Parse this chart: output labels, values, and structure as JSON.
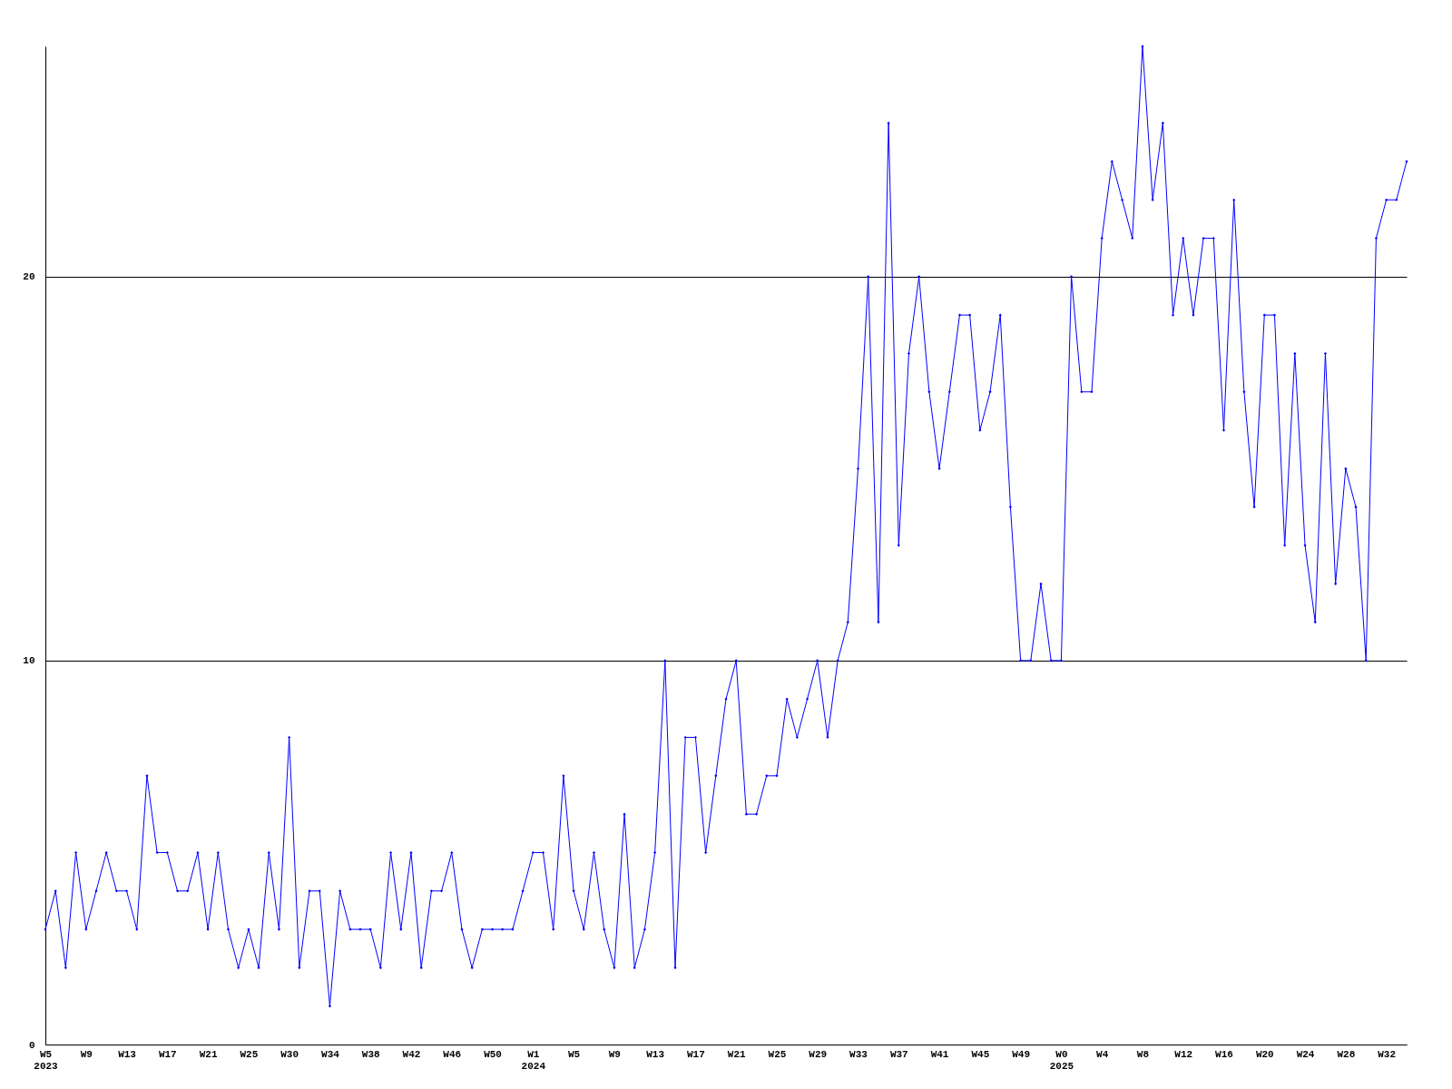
{
  "chart_data": {
    "type": "line",
    "categories": [
      "W5\n2023",
      null,
      null,
      null,
      "W9",
      null,
      null,
      null,
      "W13",
      null,
      null,
      null,
      "W17",
      null,
      null,
      null,
      "W21",
      null,
      null,
      null,
      "W25",
      null,
      null,
      null,
      "W30",
      null,
      null,
      null,
      "W34",
      null,
      null,
      null,
      "W38",
      null,
      null,
      null,
      "W42",
      null,
      null,
      null,
      "W46",
      null,
      null,
      null,
      "W50",
      null,
      null,
      null,
      "W1\n2024",
      null,
      null,
      null,
      "W5",
      null,
      null,
      null,
      "W9",
      null,
      null,
      null,
      "W13",
      null,
      null,
      null,
      "W17",
      null,
      null,
      null,
      "W21",
      null,
      null,
      null,
      "W25",
      null,
      null,
      null,
      "W29",
      null,
      null,
      null,
      "W33",
      null,
      null,
      null,
      "W37",
      null,
      null,
      null,
      "W41",
      null,
      null,
      null,
      "W45",
      null,
      null,
      null,
      "W49",
      null,
      null,
      null,
      "W0\n2025",
      null,
      null,
      null,
      "W4",
      null,
      null,
      null,
      "W8",
      null,
      null,
      null,
      "W12",
      null,
      null,
      null,
      "W16",
      null,
      null,
      null,
      "W20",
      null,
      null,
      null,
      "W24",
      null,
      null,
      null,
      "W28",
      null,
      null,
      null,
      "W32",
      null,
      null
    ],
    "series": [
      {
        "color": "#0000ff",
        "values": [
          3,
          4,
          2,
          5,
          3,
          4,
          5,
          4,
          4,
          3,
          7,
          5,
          5,
          4,
          4,
          5,
          3,
          5,
          3,
          2,
          3,
          2,
          5,
          3,
          8,
          2,
          4,
          4,
          1,
          4,
          3,
          3,
          3,
          2,
          5,
          3,
          5,
          2,
          4,
          4,
          5,
          3,
          2,
          3,
          3,
          3,
          3,
          4,
          5,
          5,
          3,
          7,
          4,
          3,
          5,
          3,
          2,
          6,
          2,
          3,
          5,
          10,
          2,
          8,
          8,
          5,
          7,
          9,
          10,
          6,
          6,
          7,
          7,
          9,
          8,
          9,
          10,
          8,
          10,
          11,
          15,
          20,
          11,
          24,
          13,
          18,
          20,
          17,
          15,
          17,
          19,
          19,
          16,
          17,
          19,
          14,
          10,
          10,
          12,
          10,
          10,
          20,
          17,
          17,
          21,
          23,
          22,
          21,
          26,
          22,
          24,
          19,
          21,
          19,
          21,
          21,
          16,
          22,
          17,
          14,
          19,
          19,
          13,
          18,
          13,
          11,
          18,
          12,
          15,
          14,
          10,
          21,
          22,
          22,
          23
        ]
      }
    ],
    "ylim": [
      0,
      26
    ],
    "yticks": [
      0,
      10,
      20
    ],
    "grid": "y",
    "marker": "diamond",
    "line_style": "solid"
  }
}
